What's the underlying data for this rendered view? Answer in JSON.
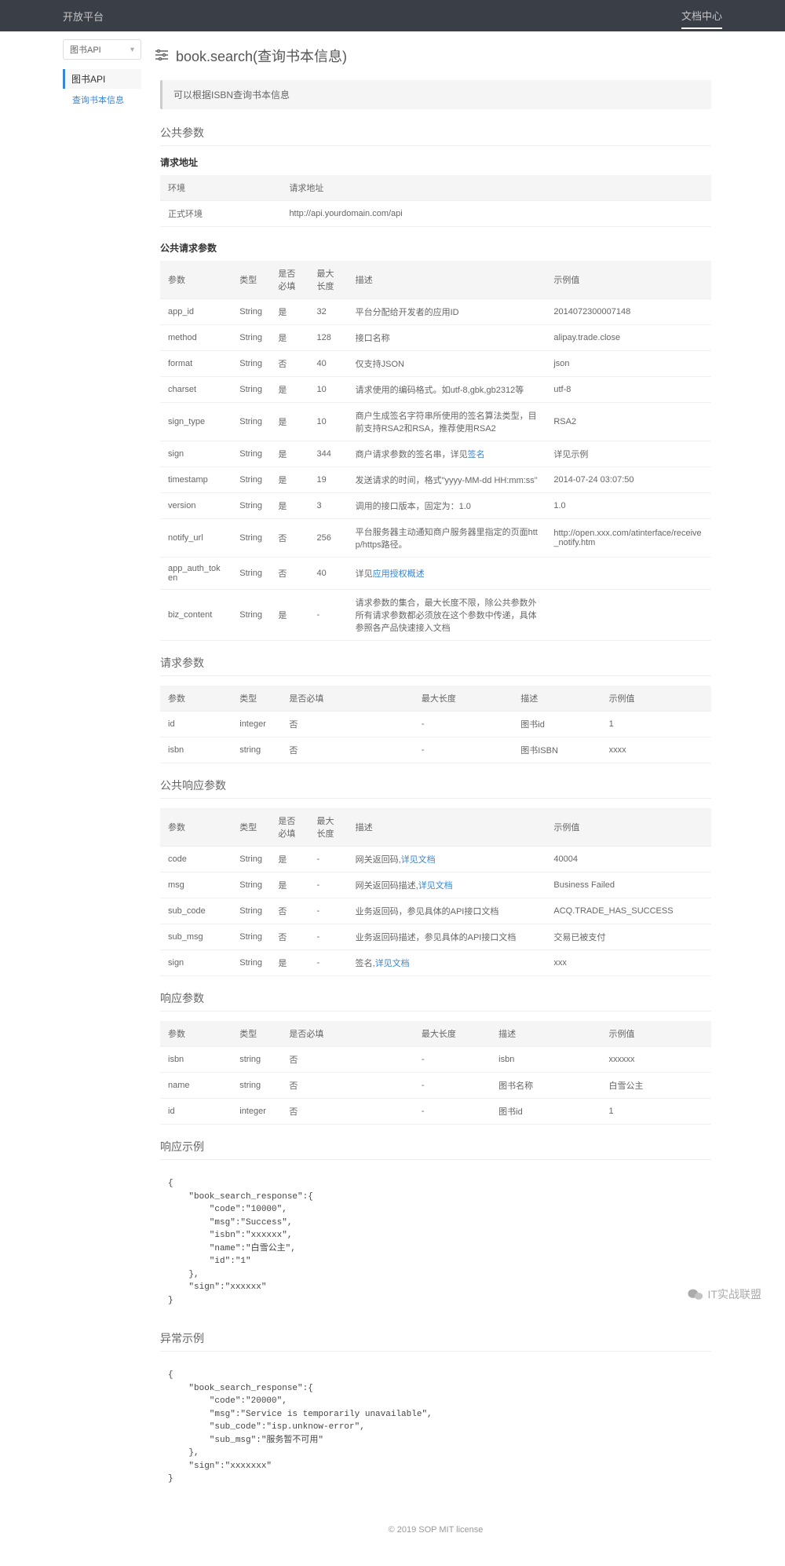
{
  "topbar": {
    "left": "开放平台",
    "right": "文档中心"
  },
  "sidebar": {
    "select": "图书API",
    "category": "图书API",
    "item": "查询书本信息"
  },
  "page": {
    "title": "book.search(查询书本信息)",
    "desc": "可以根据ISBN查询书本信息"
  },
  "sections": {
    "publicParams": "公共参数",
    "reqAddr": "请求地址",
    "addrTable": {
      "headers": [
        "环境",
        "请求地址"
      ],
      "rows": [
        [
          "正式环境",
          "http://api.yourdomain.com/api"
        ]
      ]
    },
    "pubReqParams": "公共请求参数",
    "pubReqTable": {
      "headers": [
        "参数",
        "类型",
        "是否必填",
        "最大长度",
        "描述",
        "示例值"
      ],
      "rows": [
        [
          "app_id",
          "String",
          "是",
          "32",
          "平台分配给开发者的应用ID",
          "2014072300007148"
        ],
        [
          "method",
          "String",
          "是",
          "128",
          "接口名称",
          "alipay.trade.close"
        ],
        [
          "format",
          "String",
          "否",
          "40",
          "仅支持JSON",
          "json"
        ],
        [
          "charset",
          "String",
          "是",
          "10",
          "请求使用的编码格式。如utf-8,gbk,gb2312等",
          "utf-8"
        ],
        [
          "sign_type",
          "String",
          "是",
          "10",
          "商户生成签名字符串所使用的签名算法类型，目前支持RSA2和RSA，推荐使用RSA2",
          "RSA2"
        ],
        [
          "sign",
          "String",
          "是",
          "344",
          {
            "text": "商户请求参数的签名串，详见",
            "link": "签名"
          },
          "详见示例"
        ],
        [
          "timestamp",
          "String",
          "是",
          "19",
          "发送请求的时间，格式\"yyyy-MM-dd HH:mm:ss\"",
          "2014-07-24 03:07:50"
        ],
        [
          "version",
          "String",
          "是",
          "3",
          "调用的接口版本，固定为：1.0",
          "1.0"
        ],
        [
          "notify_url",
          "String",
          "否",
          "256",
          "平台服务器主动通知商户服务器里指定的页面http/https路径。",
          "http://open.xxx.com/atinterface/receive_notify.htm"
        ],
        [
          "app_auth_token",
          "String",
          "否",
          "40",
          {
            "text": "详见",
            "link": "应用授权概述"
          },
          ""
        ],
        [
          "biz_content",
          "String",
          "是",
          "-",
          "请求参数的集合，最大长度不限，除公共参数外所有请求参数都必须放在这个参数中传递，具体参照各产品快速接入文档",
          ""
        ]
      ]
    },
    "reqParams": "请求参数",
    "reqTable": {
      "headers": [
        "参数",
        "类型",
        "是否必填",
        "最大长度",
        "描述",
        "示例值"
      ],
      "rows": [
        [
          "id",
          "integer",
          "否",
          "-",
          "图书id",
          "1"
        ],
        [
          "isbn",
          "string",
          "否",
          "-",
          "图书ISBN",
          "xxxx"
        ]
      ]
    },
    "pubRespParams": "公共响应参数",
    "pubRespTable": {
      "headers": [
        "参数",
        "类型",
        "是否必填",
        "最大长度",
        "描述",
        "示例值"
      ],
      "rows": [
        [
          "code",
          "String",
          "是",
          "-",
          {
            "text": "网关返回码,",
            "link": "详见文档"
          },
          "40004"
        ],
        [
          "msg",
          "String",
          "是",
          "-",
          {
            "text": "网关返回码描述,",
            "link": "详见文档"
          },
          "Business Failed"
        ],
        [
          "sub_code",
          "String",
          "否",
          "-",
          "业务返回码，参见具体的API接口文档",
          "ACQ.TRADE_HAS_SUCCESS"
        ],
        [
          "sub_msg",
          "String",
          "否",
          "-",
          "业务返回码描述，参见具体的API接口文档",
          "交易已被支付"
        ],
        [
          "sign",
          "String",
          "是",
          "-",
          {
            "text": "签名,",
            "link": "详见文档"
          },
          "xxx"
        ]
      ]
    },
    "respParams": "响应参数",
    "respTable": {
      "headers": [
        "参数",
        "类型",
        "是否必填",
        "最大长度",
        "描述",
        "示例值"
      ],
      "rows": [
        [
          "isbn",
          "string",
          "否",
          "-",
          "isbn",
          "xxxxxx"
        ],
        [
          "name",
          "string",
          "否",
          "-",
          "图书名称",
          "白雪公主"
        ],
        [
          "id",
          "integer",
          "否",
          "-",
          "图书id",
          "1"
        ]
      ]
    },
    "respExample": "响应示例",
    "respExampleCode": "{\n    \"book_search_response\":{\n        \"code\":\"10000\",\n        \"msg\":\"Success\",\n        \"isbn\":\"xxxxxx\",\n        \"name\":\"白雪公主\",\n        \"id\":\"1\"\n    },\n    \"sign\":\"xxxxxx\"\n}",
    "errExample": "异常示例",
    "errExampleCode": "{\n    \"book_search_response\":{\n        \"code\":\"20000\",\n        \"msg\":\"Service is temporarily unavailable\",\n        \"sub_code\":\"isp.unknow-error\",\n        \"sub_msg\":\"服务暂不可用\"\n    },\n    \"sign\":\"xxxxxxx\"\n}"
  },
  "footer": "© 2019  SOP  MIT license",
  "watermark": "IT实战联盟",
  "colors": {
    "link": "#3a86d2",
    "headerBg": "#f5f5f5",
    "border": "#eee",
    "topbar": "#3a3f47"
  }
}
